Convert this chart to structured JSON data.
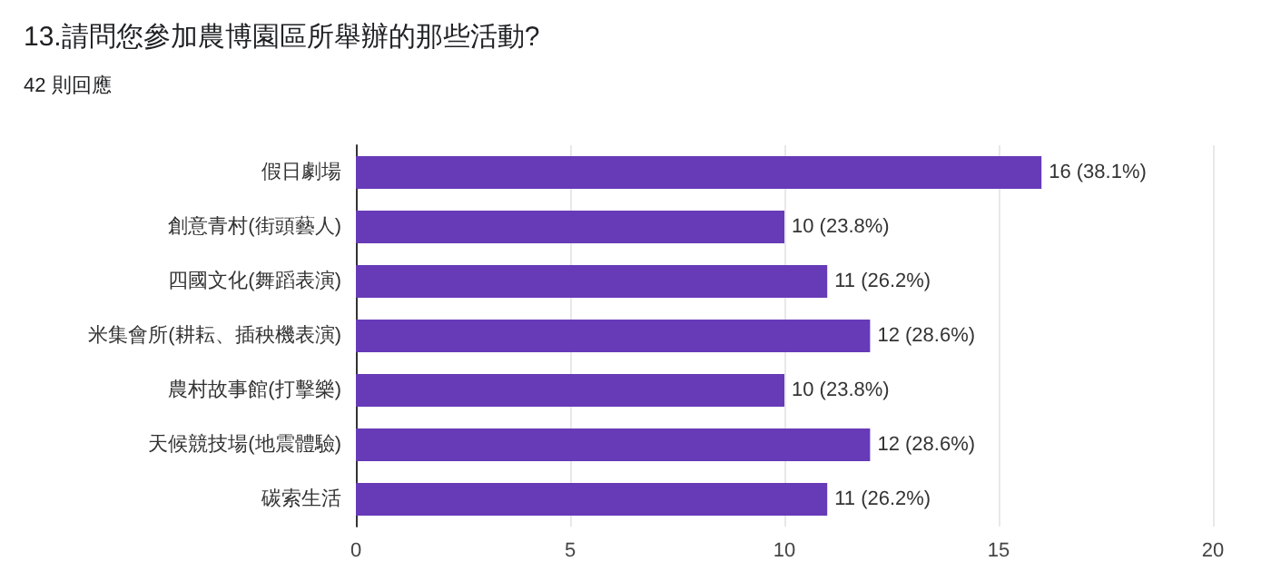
{
  "chart_data": {
    "type": "bar",
    "orientation": "horizontal",
    "title": "13.請問您參加農博園區所舉辦的那些活動?",
    "subtitle": "42 則回應",
    "categories": [
      "假日劇場",
      "創意青村(街頭藝人)",
      "四國文化(舞蹈表演)",
      "米集會所(耕耘、插秧機表演)",
      "農村故事館(打擊樂)",
      "天候競技場(地震體驗)",
      "碳索生活"
    ],
    "values": [
      16,
      10,
      11,
      12,
      10,
      12,
      11
    ],
    "value_labels": [
      "16 (38.1%)",
      "10 (23.8%)",
      "11 (26.2%)",
      "12 (28.6%)",
      "10 (23.8%)",
      "12 (28.6%)",
      "11 (26.2%)"
    ],
    "color": "#673ab7",
    "xlim": [
      0,
      20
    ],
    "xticks": [
      0,
      5,
      10,
      15,
      20
    ],
    "grid": "x"
  }
}
